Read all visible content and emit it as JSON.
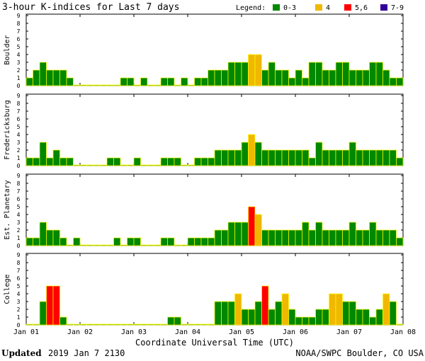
{
  "title": "3-hour K-indices for Last 7 days",
  "legend": {
    "label": "Legend:",
    "items": [
      {
        "label": "0-3",
        "color": "#008800"
      },
      {
        "label": "4",
        "color": "#f0b800"
      },
      {
        "label": "5,6",
        "color": "#ff0000"
      },
      {
        "label": "7-9",
        "color": "#330099"
      }
    ]
  },
  "xlabel": "Coordinate Universal Time (UTC)",
  "footer": {
    "updated_label": "Updated",
    "updated_value": "2019 Jan  7 2130",
    "credit": "NOAA/SWPC Boulder, CO USA"
  },
  "chart_data": [
    {
      "type": "bar",
      "ylabel": "Boulder",
      "ylim": [
        0,
        9
      ],
      "yticks": [
        "0",
        "1",
        "2",
        "3",
        "4",
        "5",
        "6",
        "7",
        "8",
        "9"
      ],
      "xticks": [
        "Jan 01",
        "Jan 02",
        "Jan 03",
        "Jan 04",
        "Jan 05",
        "Jan 06",
        "Jan 07",
        "Jan 08"
      ],
      "values": [
        1,
        2,
        3,
        2,
        2,
        2,
        1,
        0,
        0,
        0,
        0,
        0,
        0,
        0,
        1,
        1,
        0,
        1,
        0,
        0,
        1,
        1,
        0,
        1,
        0,
        1,
        1,
        2,
        2,
        2,
        3,
        3,
        3,
        4,
        4,
        2,
        3,
        2,
        2,
        1,
        2,
        1,
        3,
        3,
        2,
        2,
        3,
        3,
        2,
        2,
        2,
        3,
        3,
        2,
        1,
        1
      ]
    },
    {
      "type": "bar",
      "ylabel": "Fredericksburg",
      "ylim": [
        0,
        9
      ],
      "yticks": [
        "0",
        "1",
        "2",
        "3",
        "4",
        "5",
        "6",
        "7",
        "8",
        "9"
      ],
      "xticks": [],
      "values": [
        1,
        1,
        3,
        1,
        2,
        1,
        1,
        0,
        0,
        0,
        0,
        0,
        1,
        1,
        0,
        0,
        1,
        0,
        0,
        0,
        1,
        1,
        1,
        0,
        0,
        1,
        1,
        1,
        2,
        2,
        2,
        2,
        3,
        4,
        3,
        2,
        2,
        2,
        2,
        2,
        2,
        2,
        1,
        3,
        2,
        2,
        2,
        2,
        3,
        2,
        2,
        2,
        2,
        2,
        2,
        1,
        1,
        0
      ]
    },
    {
      "type": "bar",
      "ylabel": "Est. Planetary",
      "ylim": [
        0,
        9
      ],
      "yticks": [
        "0",
        "1",
        "2",
        "3",
        "4",
        "5",
        "6",
        "7",
        "8",
        "9"
      ],
      "xticks": [],
      "values": [
        1,
        1,
        3,
        2,
        2,
        1,
        0,
        1,
        0,
        0,
        0,
        0,
        0,
        1,
        0,
        1,
        1,
        0,
        0,
        0,
        1,
        1,
        0,
        0,
        1,
        1,
        1,
        1,
        2,
        2,
        3,
        3,
        3,
        5,
        4,
        2,
        2,
        2,
        2,
        2,
        2,
        3,
        2,
        3,
        2,
        2,
        2,
        2,
        3,
        2,
        2,
        3,
        2,
        2,
        2,
        1,
        1,
        0
      ]
    },
    {
      "type": "bar",
      "ylabel": "College",
      "ylim": [
        0,
        9
      ],
      "yticks": [
        "0",
        "1",
        "2",
        "3",
        "4",
        "5",
        "6",
        "7",
        "8",
        "9"
      ],
      "xticks": [],
      "values": [
        0,
        0,
        3,
        5,
        5,
        1,
        0,
        0,
        0,
        0,
        0,
        0,
        0,
        0,
        0,
        0,
        0,
        0,
        0,
        0,
        0,
        1,
        1,
        0,
        0,
        0,
        0,
        0,
        3,
        3,
        3,
        4,
        2,
        2,
        3,
        5,
        2,
        3,
        4,
        2,
        1,
        1,
        1,
        2,
        2,
        4,
        4,
        3,
        3,
        2,
        2,
        1,
        2,
        4,
        3,
        0,
        0,
        0
      ]
    }
  ]
}
